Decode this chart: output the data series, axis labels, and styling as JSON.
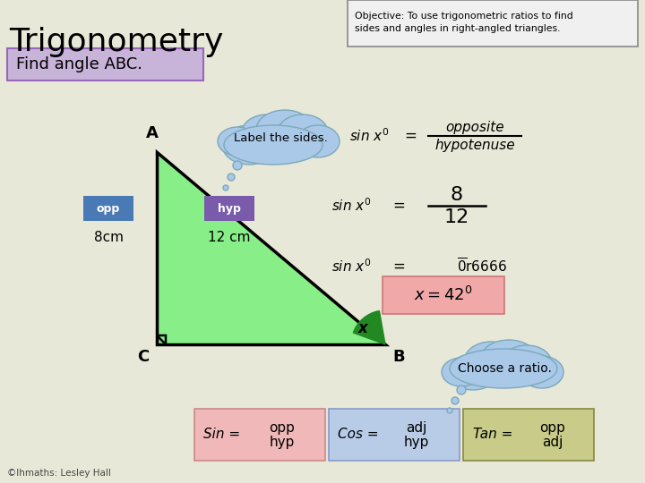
{
  "bg_color": "#e8e8d8",
  "title": "Trigonometry",
  "title_fontsize": 26,
  "title_color": "#000000",
  "objective_text": "Objective: To use trigonometric ratios to find\nsides and angles in right-angled triangles.",
  "objective_box_color": "#f0f0f0",
  "find_text": "Find angle ABC.",
  "find_box_color": "#c8b4d8",
  "triangle_fill": "#88ee88",
  "triangle_A": [
    0.175,
    0.685
  ],
  "triangle_C": [
    0.175,
    0.395
  ],
  "triangle_B": [
    0.43,
    0.395
  ],
  "opp_box_color": "#4a7ab5",
  "hyp_box_color": "#7a5aaa",
  "label_cloud_color": "#aac8e8",
  "choose_cloud_color": "#aac8e8",
  "answer_box_color": "#f0a8a8",
  "sin_box_color": "#f0b8b8",
  "cos_box_color": "#b8cce8",
  "tan_box_color": "#c8cc88"
}
